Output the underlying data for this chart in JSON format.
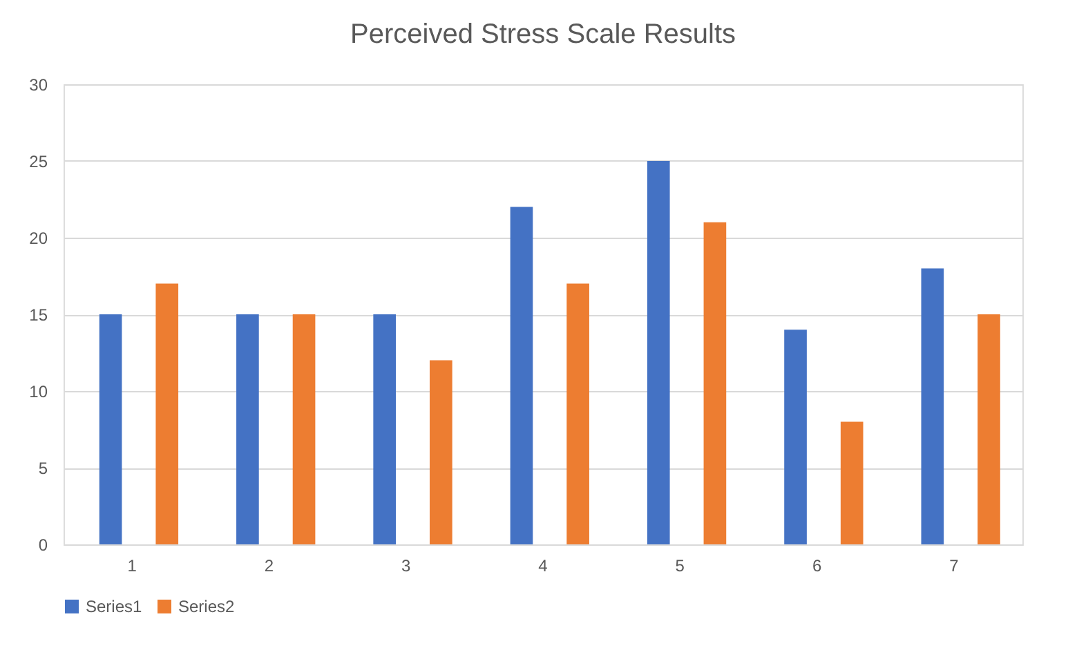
{
  "chart_data": {
    "type": "bar",
    "title": "Perceived Stress Scale Results",
    "categories": [
      "1",
      "2",
      "3",
      "4",
      "5",
      "6",
      "7"
    ],
    "series": [
      {
        "name": "Series1",
        "color": "#4472c4",
        "values": [
          15,
          15,
          15,
          22,
          25,
          14,
          18
        ]
      },
      {
        "name": "Series2",
        "color": "#ed7d31",
        "values": [
          17,
          15,
          12,
          17,
          21,
          8,
          15
        ]
      }
    ],
    "ylim": [
      0,
      30
    ],
    "yticks": [
      0,
      5,
      10,
      15,
      20,
      25,
      30
    ],
    "grid": "y",
    "legend": "bottom"
  }
}
